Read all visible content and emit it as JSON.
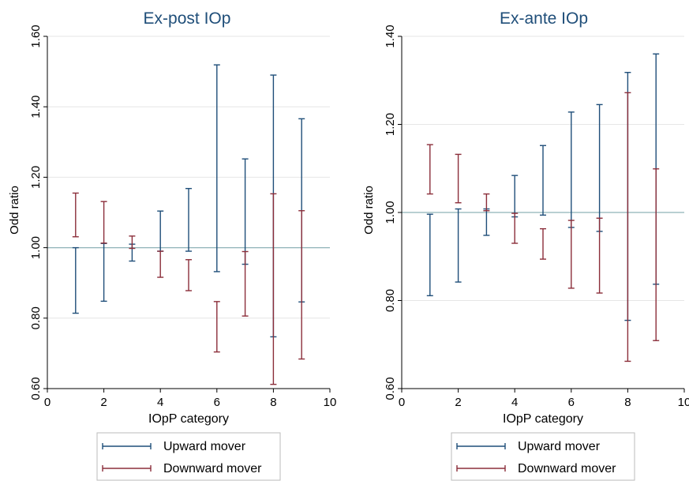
{
  "chart_data": [
    {
      "type": "errorbar",
      "title": "Ex-post IOp",
      "xlabel": "IOpP category",
      "ylabel": "Odd ratio",
      "xlim": [
        0,
        10
      ],
      "ylim": [
        0.6,
        1.6
      ],
      "xticks": [
        "0",
        "2",
        "4",
        "6",
        "8",
        "10"
      ],
      "xtick_values": [
        0,
        2,
        4,
        6,
        8,
        10
      ],
      "yticks": [
        "0.60",
        "0.80",
        "1.00",
        "1.20",
        "1.40",
        "1.60"
      ],
      "ytick_values": [
        0.6,
        0.8,
        1.0,
        1.2,
        1.4,
        1.6
      ],
      "reference_line": 1.0,
      "grid": true,
      "legend_position": "bottom",
      "series": [
        {
          "name": "Upward mover",
          "color": "#1f4e79",
          "x": [
            1,
            2,
            3,
            4,
            5,
            6,
            7,
            8,
            9
          ],
          "low": [
            0.814,
            0.848,
            0.962,
            0.99,
            0.99,
            0.932,
            0.953,
            0.747,
            0.846
          ],
          "high": [
            1.0,
            1.012,
            1.01,
            1.104,
            1.168,
            1.519,
            1.252,
            1.49,
            1.366
          ]
        },
        {
          "name": "Downward mover",
          "color": "#8b2e3a",
          "x": [
            1,
            2,
            3,
            4,
            5,
            6,
            7,
            8,
            9
          ],
          "low": [
            1.031,
            1.013,
            0.998,
            0.916,
            0.878,
            0.704,
            0.806,
            0.612,
            0.684
          ],
          "high": [
            1.155,
            1.131,
            1.033,
            0.99,
            0.966,
            0.847,
            0.989,
            1.153,
            1.105
          ]
        }
      ]
    },
    {
      "type": "errorbar",
      "title": "Ex-ante IOp",
      "xlabel": "IOpP category",
      "ylabel": "Odd ratio",
      "xlim": [
        0,
        10
      ],
      "ylim": [
        0.6,
        1.4
      ],
      "xticks": [
        "0",
        "2",
        "4",
        "6",
        "8",
        "10"
      ],
      "xtick_values": [
        0,
        2,
        4,
        6,
        8,
        10
      ],
      "yticks": [
        "0.60",
        "0.80",
        "1.00",
        "1.20",
        "1.40"
      ],
      "ytick_values": [
        0.6,
        0.8,
        1.0,
        1.2,
        1.4
      ],
      "reference_line": 1.0,
      "grid": true,
      "legend_position": "bottom",
      "series": [
        {
          "name": "Upward mover",
          "color": "#1f4e79",
          "x": [
            1,
            2,
            3,
            4,
            5,
            6,
            7,
            8,
            9
          ],
          "low": [
            0.811,
            0.842,
            0.948,
            0.99,
            0.994,
            0.966,
            0.957,
            0.755,
            0.837
          ],
          "high": [
            0.996,
            1.008,
            1.008,
            1.084,
            1.152,
            1.228,
            1.245,
            1.318,
            1.36
          ]
        },
        {
          "name": "Downward mover",
          "color": "#8b2e3a",
          "x": [
            1,
            2,
            3,
            4,
            5,
            6,
            7,
            8,
            9
          ],
          "low": [
            1.042,
            1.022,
            1.004,
            0.93,
            0.894,
            0.828,
            0.817,
            0.662,
            0.709
          ],
          "high": [
            1.154,
            1.132,
            1.042,
            0.998,
            0.963,
            0.982,
            0.987,
            1.272,
            1.099
          ]
        }
      ]
    }
  ]
}
